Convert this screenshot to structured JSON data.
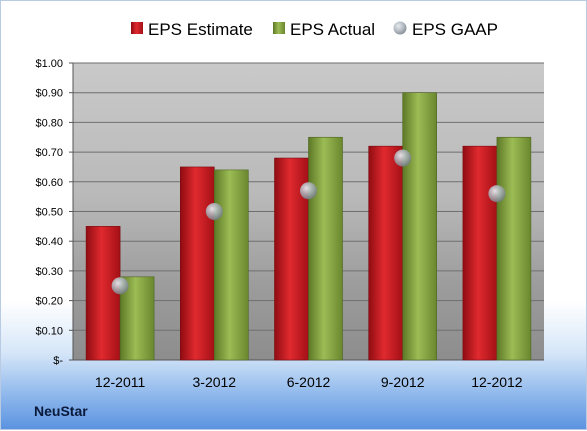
{
  "company": "NeuStar",
  "colors": {
    "estimate": "#c8141c",
    "actual": "#7e9d3a",
    "gaap": "#9aa3ad"
  },
  "chart_data": {
    "type": "bar",
    "categories": [
      "12-2011",
      "3-2012",
      "6-2012",
      "9-2012",
      "12-2012"
    ],
    "series": [
      {
        "name": "EPS Estimate",
        "values": [
          0.45,
          0.65,
          0.68,
          0.72,
          0.72
        ]
      },
      {
        "name": "EPS Actual",
        "values": [
          0.28,
          0.64,
          0.75,
          0.9,
          0.75
        ]
      },
      {
        "name": "EPS GAAP",
        "type": "scatter",
        "values": [
          0.25,
          0.5,
          0.57,
          0.68,
          0.56
        ]
      }
    ],
    "ylim": [
      0,
      1.0
    ],
    "yticks": [
      0,
      0.1,
      0.2,
      0.3,
      0.4,
      0.5,
      0.6,
      0.7,
      0.8,
      0.9,
      1.0
    ],
    "ytick_labels": [
      "$-",
      "$0.10",
      "$0.20",
      "$0.30",
      "$0.40",
      "$0.50",
      "$0.60",
      "$0.70",
      "$0.80",
      "$0.90",
      "$1.00"
    ],
    "grid": true,
    "legend": "top"
  }
}
